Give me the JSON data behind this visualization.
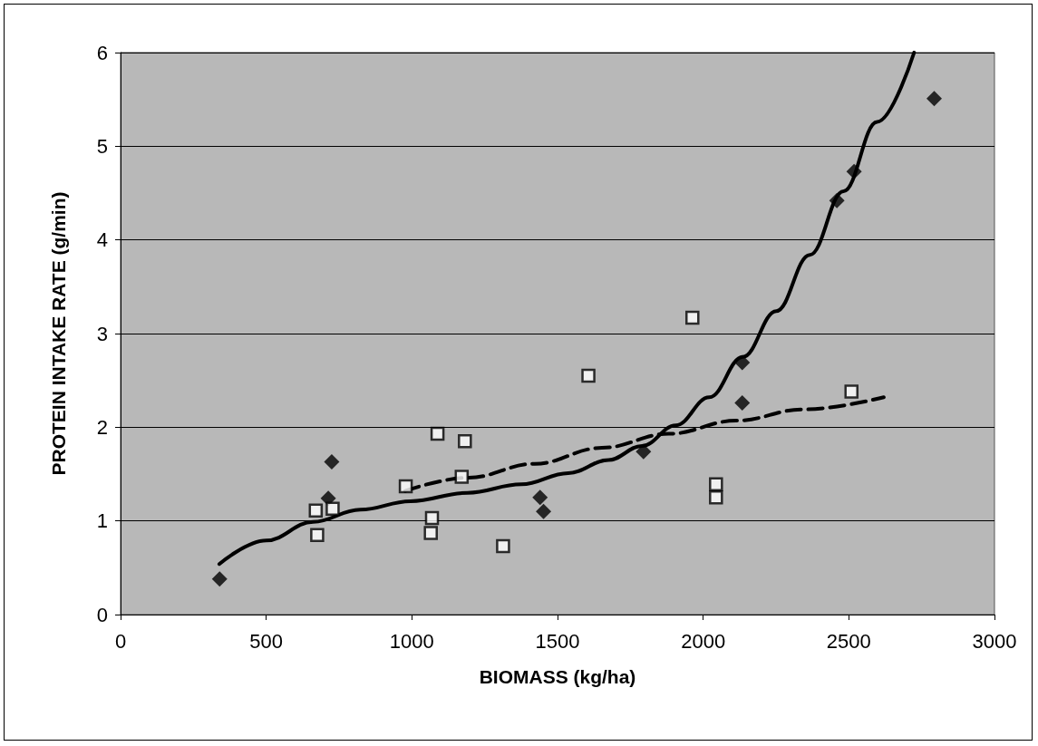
{
  "chart_data": {
    "type": "scatter",
    "xlabel": "BIOMASS (kg/ha)",
    "ylabel": "PROTEIN INTAKE RATE (g/min)",
    "xlim": [
      0,
      3000
    ],
    "xticks": [
      0,
      500,
      1000,
      1500,
      2000,
      2500,
      3000
    ],
    "ylim": [
      0,
      6
    ],
    "yticks": [
      0,
      1,
      2,
      3,
      4,
      5,
      6
    ],
    "grid": "y",
    "series": [
      {
        "marker": "diamond",
        "color": "#000000",
        "x": [
          340,
          713,
          725,
          1440,
          1452,
          1795,
          2134,
          2134,
          2459,
          2518,
          2793
        ],
        "values": [
          0.38,
          1.24,
          1.63,
          1.25,
          1.1,
          1.74,
          2.69,
          2.26,
          4.42,
          4.73,
          5.51
        ]
      },
      {
        "marker": "square",
        "color": "#ffffff",
        "x": [
          670,
          675,
          728,
          979,
          1065,
          1069,
          1088,
          1171,
          1182,
          1313,
          1606,
          1963,
          2044,
          2044,
          2509
        ],
        "values": [
          1.11,
          0.85,
          1.13,
          1.37,
          0.87,
          1.03,
          1.93,
          1.47,
          1.85,
          0.73,
          2.55,
          3.17,
          1.39,
          1.25,
          2.38
        ]
      },
      {
        "type": "line",
        "line_style": "solid",
        "marker": "none",
        "color": "#000000",
        "x": [
          339,
          500,
          661,
          823,
          995,
          1191,
          1376,
          1537,
          1675,
          1790,
          1906,
          2021,
          2136,
          2251,
          2366,
          2482,
          2597,
          2724
        ],
        "values": [
          0.54,
          0.79,
          0.99,
          1.12,
          1.21,
          1.3,
          1.39,
          1.51,
          1.65,
          1.8,
          2.02,
          2.32,
          2.75,
          3.24,
          3.84,
          4.52,
          5.26,
          6
        ]
      },
      {
        "type": "line",
        "line_style": "dashed",
        "marker": "none",
        "color": "#000000",
        "x": [
          977,
          1191,
          1422,
          1652,
          1882,
          2113,
          2343,
          2620
        ],
        "values": [
          1.32,
          1.46,
          1.61,
          1.78,
          1.93,
          2.07,
          2.19,
          2.32
        ]
      }
    ]
  }
}
